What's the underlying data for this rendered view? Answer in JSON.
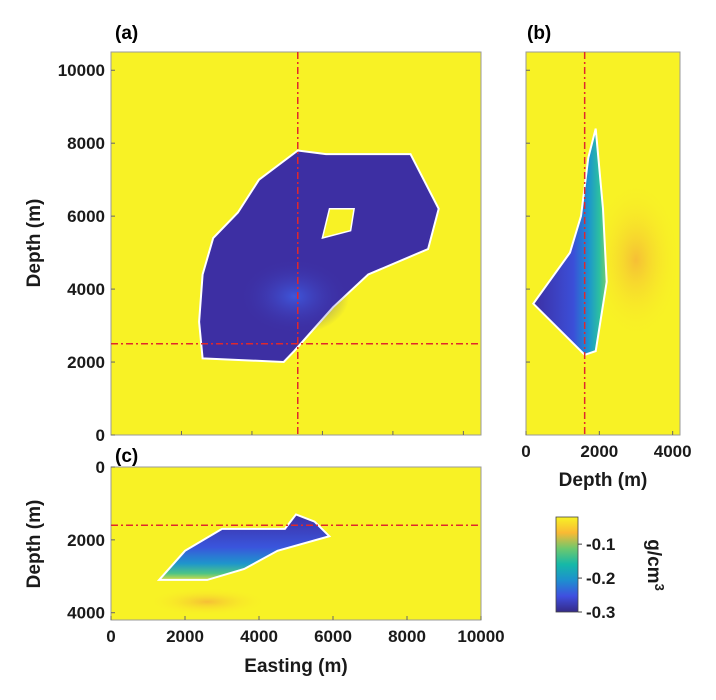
{
  "colors": {
    "background_field": "#f8f225",
    "anomaly_core": "#3d2fa3",
    "anomaly_mid": "#3a4fd6",
    "boundary": "#ffffff",
    "crosshair": "#e0282c"
  },
  "chart_data": [
    {
      "panel_label": "(a)",
      "type": "heatmap",
      "xlabel": "",
      "ylabel": "Depth (m)",
      "xlim": [
        0,
        10500
      ],
      "ylim": [
        0,
        10500
      ],
      "x_ticks": [],
      "y_ticks": [
        "0",
        "2000",
        "4000",
        "6000",
        "8000",
        "10000"
      ],
      "y_tick_values": [
        0,
        2000,
        4000,
        6000,
        8000,
        10000
      ],
      "crosshair": {
        "x": 5300,
        "y": 2500
      },
      "anomaly_outline": [
        [
          2600,
          2100
        ],
        [
          4900,
          2000
        ],
        [
          5200,
          2300
        ],
        [
          6300,
          3500
        ],
        [
          7300,
          4400
        ],
        [
          9000,
          5100
        ],
        [
          9300,
          6200
        ],
        [
          8500,
          7700
        ],
        [
          6100,
          7700
        ],
        [
          5300,
          7800
        ],
        [
          4200,
          7000
        ],
        [
          3600,
          6100
        ],
        [
          2900,
          5400
        ],
        [
          2600,
          4400
        ],
        [
          2500,
          3100
        ]
      ],
      "inclusion_outline": [
        [
          6000,
          5400
        ],
        [
          6800,
          5600
        ],
        [
          6900,
          6200
        ],
        [
          6200,
          6200
        ]
      ]
    },
    {
      "panel_label": "(b)",
      "type": "heatmap",
      "xlabel": "Depth (m)",
      "ylabel": "",
      "xlim": [
        0,
        4200
      ],
      "ylim": [
        0,
        10500
      ],
      "x_ticks": [
        "0",
        "2000",
        "4000"
      ],
      "x_tick_values": [
        0,
        2000,
        4000
      ],
      "y_ticks": [],
      "crosshair": {
        "x": 1600
      },
      "anomaly_outline": [
        [
          1600,
          2200
        ],
        [
          1900,
          2300
        ],
        [
          2200,
          4200
        ],
        [
          2100,
          6200
        ],
        [
          1900,
          8400
        ],
        [
          1700,
          7600
        ],
        [
          1500,
          6000
        ],
        [
          1200,
          5000
        ],
        [
          200,
          3600
        ]
      ]
    },
    {
      "panel_label": "(c)",
      "type": "heatmap",
      "xlabel": "Easting (m)",
      "ylabel": "Depth (m)",
      "xlim": [
        0,
        10000
      ],
      "ylim": [
        4200,
        0
      ],
      "x_ticks": [
        "0",
        "2000",
        "4000",
        "6000",
        "8000",
        "10000"
      ],
      "x_tick_values": [
        0,
        2000,
        4000,
        6000,
        8000,
        10000
      ],
      "y_ticks": [
        "0",
        "2000",
        "4000"
      ],
      "y_tick_values": [
        0,
        2000,
        4000
      ],
      "crosshair": {
        "y": 1600
      },
      "anomaly_outline": [
        [
          1300,
          3100
        ],
        [
          2000,
          2300
        ],
        [
          3000,
          1700
        ],
        [
          4700,
          1700
        ],
        [
          5000,
          1300
        ],
        [
          5500,
          1500
        ],
        [
          5900,
          1900
        ],
        [
          4500,
          2300
        ],
        [
          3600,
          2800
        ],
        [
          2600,
          3100
        ]
      ]
    },
    {
      "type": "colorbar",
      "label": "g/cm",
      "label_superscript": "3",
      "ticks": [
        "-0.1",
        "-0.2",
        "-0.3"
      ],
      "tick_values": [
        -0.1,
        -0.2,
        -0.3
      ],
      "range": [
        -0.3,
        -0.02
      ],
      "colormap": [
        "#352a87",
        "#3f4fe0",
        "#1e8fcf",
        "#15b8a8",
        "#6dc86e",
        "#f9b934",
        "#f8f225"
      ]
    }
  ]
}
